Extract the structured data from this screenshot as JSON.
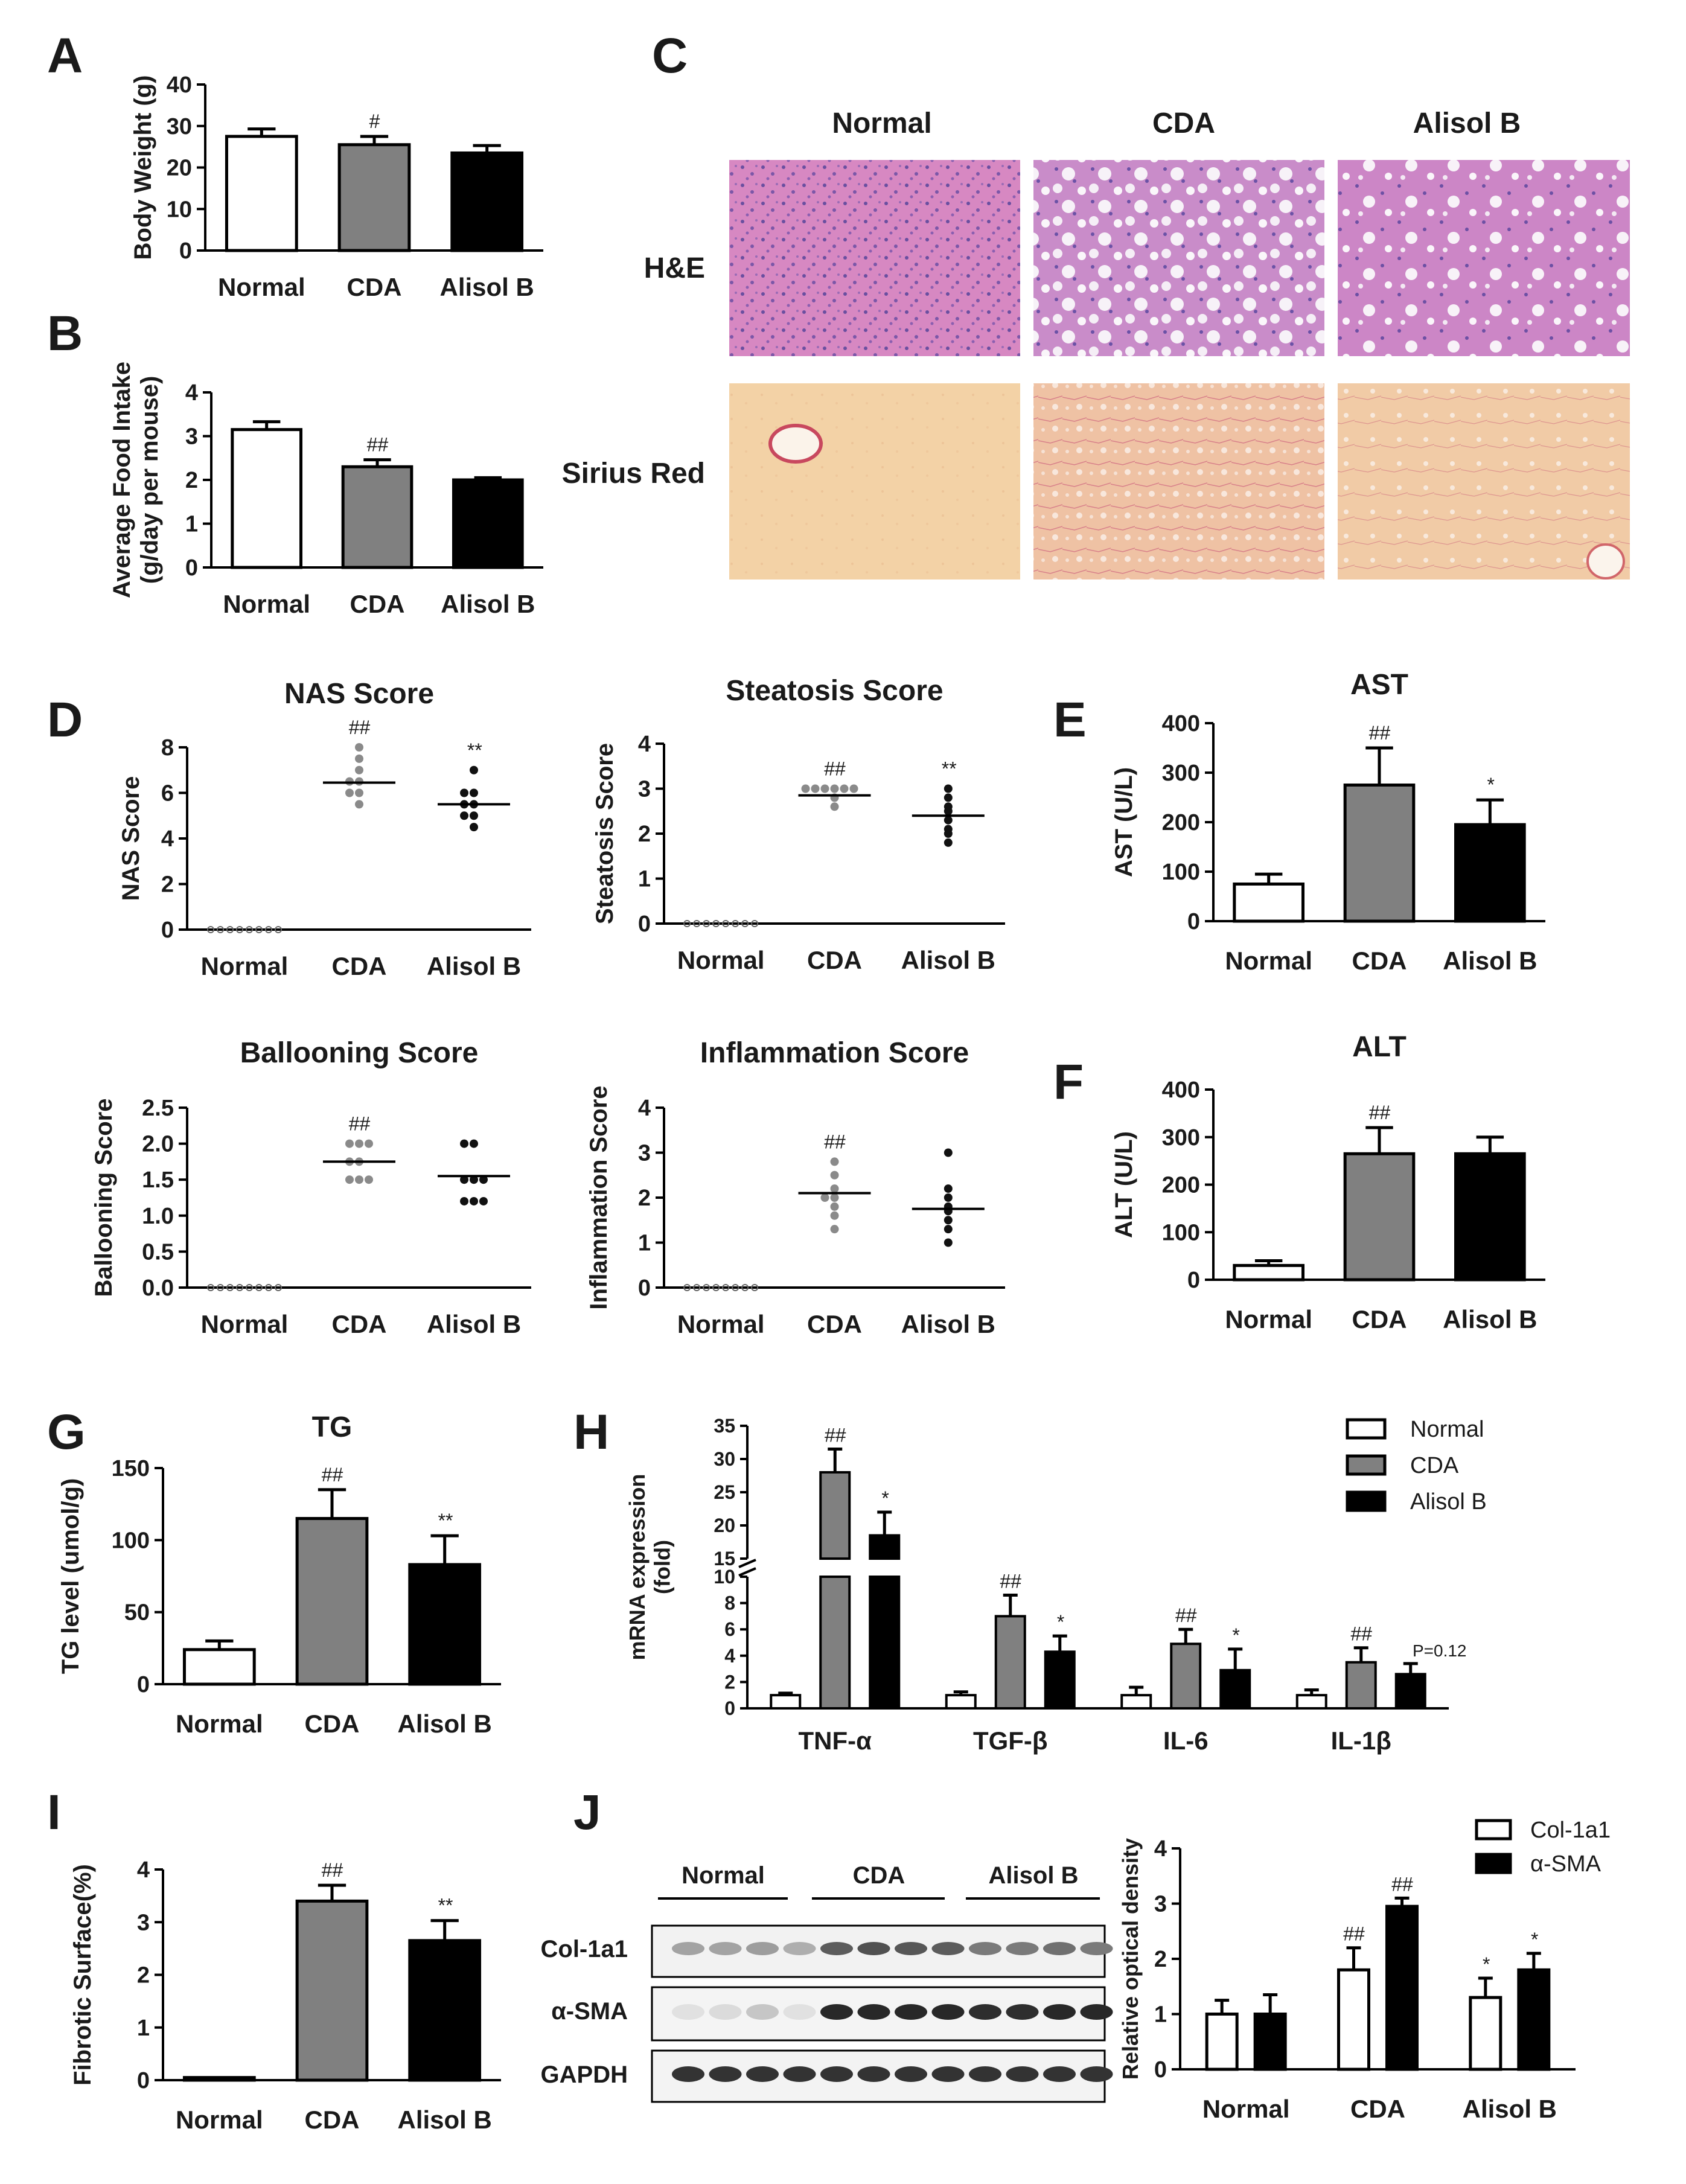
{
  "panel_letters": [
    "A",
    "B",
    "C",
    "D",
    "E",
    "F",
    "G",
    "H",
    "I",
    "J"
  ],
  "colors": {
    "normal": "#ffffff",
    "cda": "#808080",
    "alisol": "#000000",
    "dot_normal": "#888888",
    "dot_cda": "#8a8a8a",
    "dot_alisol": "#111111"
  },
  "histology": {
    "columns": [
      "Normal",
      "CDA",
      "Alisol B"
    ],
    "rows": [
      "H&E",
      "Sirius Red"
    ]
  },
  "western_blot": {
    "groups": [
      "Normal",
      "CDA",
      "Alisol B"
    ],
    "bands": [
      "Col-1a1",
      "α-SMA",
      "GAPDH"
    ]
  },
  "chart_data": [
    {
      "id": "A",
      "type": "bar",
      "title": "",
      "ylabel": "Body Weight (g)",
      "categories": [
        "Normal",
        "CDA",
        "Alisol B"
      ],
      "values": [
        27.5,
        25.5,
        23.5
      ],
      "errors": [
        1.8,
        2.0,
        1.8
      ],
      "ylim": [
        0,
        40
      ],
      "yticks": [
        "0",
        "10",
        "20",
        "30",
        "40"
      ],
      "annotations": [
        "",
        "#",
        ""
      ]
    },
    {
      "id": "B",
      "type": "bar",
      "title": "",
      "ylabel": "Average Food Intake (g/day per mouse)",
      "categories": [
        "Normal",
        "CDA",
        "Alisol B"
      ],
      "values": [
        3.15,
        2.3,
        2.0
      ],
      "errors": [
        0.18,
        0.16,
        0.05
      ],
      "ylim": [
        0,
        4
      ],
      "yticks": [
        "0",
        "1",
        "2",
        "3",
        "4"
      ],
      "annotations": [
        "",
        "##",
        ""
      ]
    },
    {
      "id": "D1",
      "type": "scatter",
      "title": "NAS Score",
      "ylabel": "NAS Score",
      "categories": [
        "Normal",
        "CDA",
        "Alisol B"
      ],
      "points": [
        [
          0,
          0,
          0,
          0,
          0,
          0,
          0,
          0
        ],
        [
          8,
          7.5,
          7,
          6.5,
          6.5,
          6,
          6,
          5.5
        ],
        [
          7,
          6,
          6,
          5.5,
          5.5,
          5,
          5,
          4.5
        ]
      ],
      "means": [
        0,
        6.45,
        5.5
      ],
      "ylim": [
        0,
        8
      ],
      "yticks": [
        "0",
        "2",
        "4",
        "6",
        "8"
      ],
      "annotations": [
        "",
        "##",
        "**"
      ]
    },
    {
      "id": "D2",
      "type": "scatter",
      "title": "Steatosis Score",
      "ylabel": "Steatosis Score",
      "categories": [
        "Normal",
        "CDA",
        "Alisol B"
      ],
      "points": [
        [
          0,
          0,
          0,
          0,
          0,
          0,
          0,
          0
        ],
        [
          3,
          3,
          3,
          3,
          3,
          3,
          2.8,
          2.6
        ],
        [
          3,
          2.8,
          2.6,
          2.5,
          2.3,
          2.1,
          2.0,
          1.8
        ]
      ],
      "means": [
        0,
        2.85,
        2.4
      ],
      "ylim": [
        0,
        4
      ],
      "yticks": [
        "0",
        "1",
        "2",
        "3",
        "4"
      ],
      "annotations": [
        "",
        "##",
        "**"
      ]
    },
    {
      "id": "D3",
      "type": "scatter",
      "title": "Ballooning Score",
      "ylabel": "Ballooning Score",
      "categories": [
        "Normal",
        "CDA",
        "Alisol B"
      ],
      "points": [
        [
          0,
          0,
          0,
          0,
          0,
          0,
          0,
          0
        ],
        [
          2,
          2,
          2,
          1.75,
          1.75,
          1.5,
          1.5,
          1.5
        ],
        [
          2,
          2,
          1.5,
          1.5,
          1.5,
          1.2,
          1.2,
          1.2
        ]
      ],
      "means": [
        0,
        1.75,
        1.55
      ],
      "ylim": [
        0,
        2.5
      ],
      "yticks": [
        "0.0",
        "0.5",
        "1.0",
        "1.5",
        "2.0",
        "2.5"
      ],
      "annotations": [
        "",
        "##",
        ""
      ]
    },
    {
      "id": "D4",
      "type": "scatter",
      "title": "Inflammation Score",
      "ylabel": "Inflammation Score",
      "categories": [
        "Normal",
        "CDA",
        "Alisol B"
      ],
      "points": [
        [
          0,
          0,
          0,
          0,
          0,
          0,
          0,
          0
        ],
        [
          2.8,
          2.5,
          2.2,
          2.0,
          2.0,
          1.8,
          1.6,
          1.3
        ],
        [
          3,
          2.2,
          2.0,
          1.8,
          1.7,
          1.5,
          1.3,
          1.0
        ]
      ],
      "means": [
        0,
        2.1,
        1.75
      ],
      "ylim": [
        0,
        4
      ],
      "yticks": [
        "0",
        "1",
        "2",
        "3",
        "4"
      ],
      "annotations": [
        "",
        "##",
        ""
      ]
    },
    {
      "id": "E",
      "type": "bar",
      "title": "AST",
      "ylabel": "AST (U/L)",
      "categories": [
        "Normal",
        "CDA",
        "Alisol B"
      ],
      "values": [
        75,
        275,
        195
      ],
      "errors": [
        20,
        75,
        50
      ],
      "ylim": [
        0,
        400
      ],
      "yticks": [
        "0",
        "100",
        "200",
        "300",
        "400"
      ],
      "annotations": [
        "",
        "##",
        "*"
      ]
    },
    {
      "id": "F",
      "type": "bar",
      "title": "ALT",
      "ylabel": "ALT (U/L)",
      "categories": [
        "Normal",
        "CDA",
        "Alisol B"
      ],
      "values": [
        30,
        265,
        265
      ],
      "errors": [
        10,
        55,
        35
      ],
      "ylim": [
        0,
        400
      ],
      "yticks": [
        "0",
        "100",
        "200",
        "300",
        "400"
      ],
      "annotations": [
        "",
        "##",
        ""
      ]
    },
    {
      "id": "G",
      "type": "bar",
      "title": "TG",
      "ylabel": "TG level (umol/g)",
      "categories": [
        "Normal",
        "CDA",
        "Alisol B"
      ],
      "values": [
        24,
        115,
        83
      ],
      "errors": [
        6,
        20,
        20
      ],
      "ylim": [
        0,
        150
      ],
      "yticks": [
        "0",
        "50",
        "100",
        "150"
      ],
      "annotations": [
        "",
        "##",
        "**"
      ]
    },
    {
      "id": "H",
      "type": "bar",
      "title": "",
      "ylabel": "mRNA expression (fold)",
      "categories": [
        "TNF-α",
        "TGF-β",
        "IL-6",
        "IL-1β"
      ],
      "series": [
        {
          "name": "Normal",
          "values": [
            1.0,
            1.0,
            1.0,
            1.0
          ],
          "errors": [
            0.15,
            0.25,
            0.6,
            0.4
          ]
        },
        {
          "name": "CDA",
          "values": [
            28,
            7.0,
            4.9,
            3.5
          ],
          "errors": [
            3.5,
            1.6,
            1.1,
            1.1
          ]
        },
        {
          "name": "Alisol B",
          "values": [
            18.5,
            4.3,
            2.9,
            2.6
          ],
          "errors": [
            3.5,
            1.2,
            1.6,
            0.8
          ]
        }
      ],
      "ylim": [
        0,
        35
      ],
      "axis_break": [
        10,
        15
      ],
      "yticks_low": [
        "0",
        "2",
        "4",
        "6",
        "8",
        "10"
      ],
      "yticks_high": [
        "15",
        "20",
        "25",
        "30",
        "35"
      ],
      "annotations": [
        [
          "",
          "##",
          "*"
        ],
        [
          "",
          "##",
          "*"
        ],
        [
          "",
          "##",
          "*"
        ],
        [
          "",
          "##",
          "P=0.12"
        ]
      ]
    },
    {
      "id": "I",
      "type": "bar",
      "title": "",
      "ylabel": "Fibrotic Surface(%)",
      "categories": [
        "Normal",
        "CDA",
        "Alisol B"
      ],
      "values": [
        0.05,
        3.4,
        2.65
      ],
      "errors": [
        0,
        0.3,
        0.38
      ],
      "ylim": [
        0,
        4
      ],
      "yticks": [
        "0",
        "1",
        "2",
        "3",
        "4"
      ],
      "annotations": [
        "",
        "##",
        "**"
      ]
    },
    {
      "id": "J",
      "type": "bar",
      "title": "",
      "ylabel": "Relative optical density",
      "categories": [
        "Normal",
        "CDA",
        "Alisol B"
      ],
      "series": [
        {
          "name": "Col-1a1",
          "values": [
            1.0,
            1.8,
            1.3
          ],
          "errors": [
            0.25,
            0.4,
            0.35
          ]
        },
        {
          "name": "α-SMA",
          "values": [
            1.0,
            2.95,
            1.8
          ],
          "errors": [
            0.35,
            0.15,
            0.3
          ]
        }
      ],
      "ylim": [
        0,
        4
      ],
      "yticks": [
        "0",
        "1",
        "2",
        "3",
        "4"
      ],
      "annotations": [
        [
          "",
          ""
        ],
        [
          "##",
          "##"
        ],
        [
          "*",
          "*"
        ]
      ]
    }
  ]
}
